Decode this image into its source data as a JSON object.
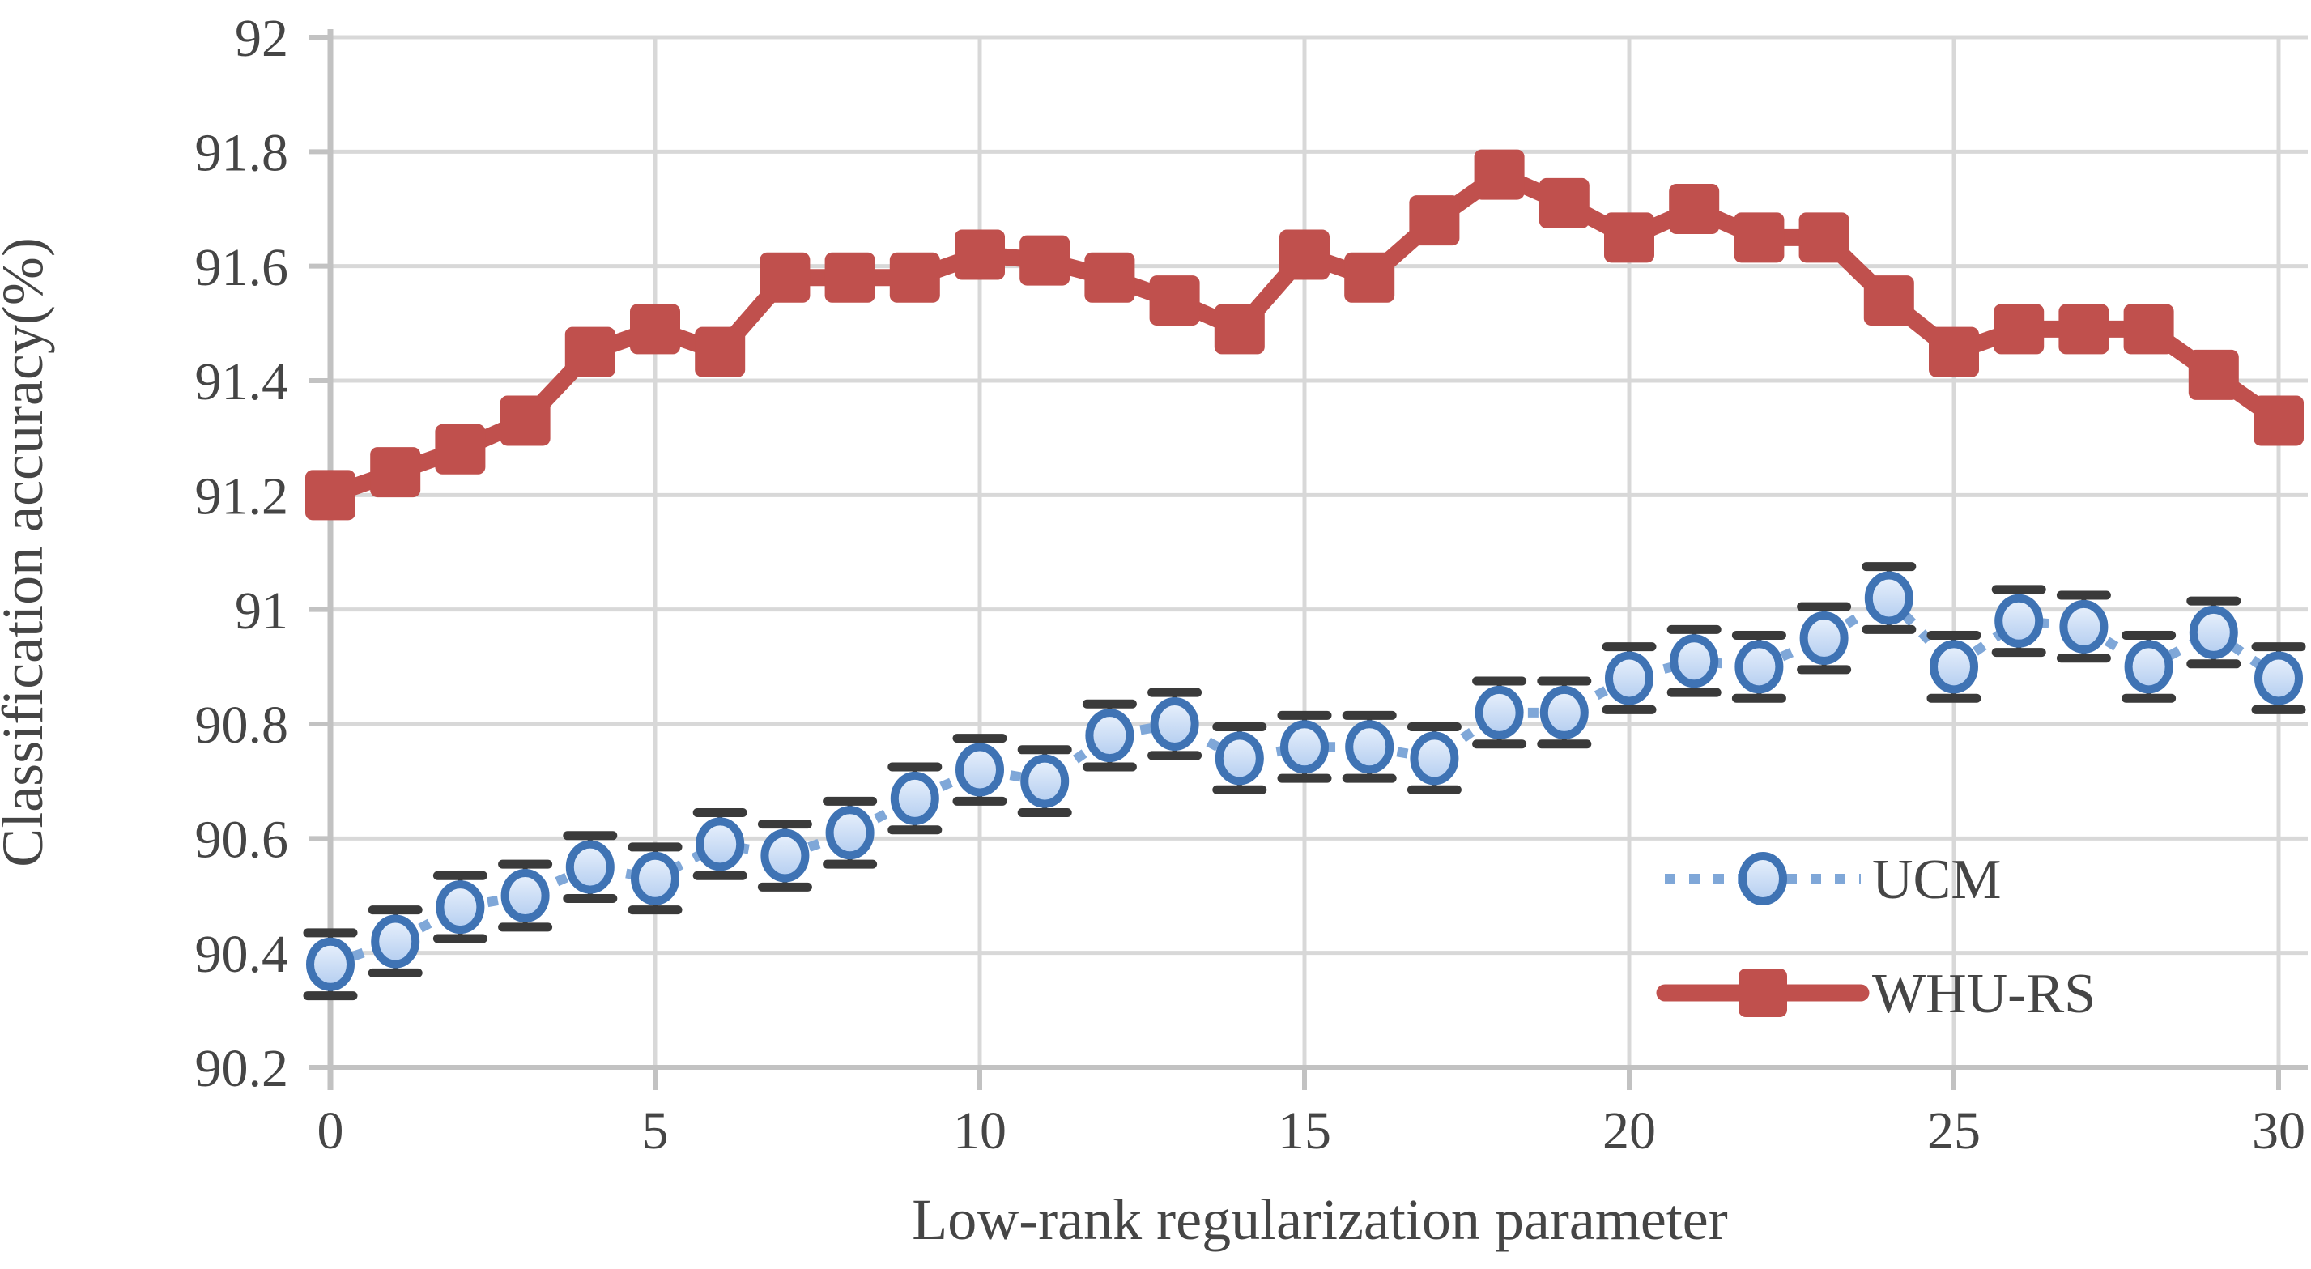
{
  "chart_data": {
    "type": "line",
    "title": "",
    "xlabel": "Low-rank regularization parameter",
    "ylabel": "Classification accuracy(%)",
    "xlim": [
      0,
      30
    ],
    "ylim": [
      90.2,
      92
    ],
    "grid": true,
    "x_ticks": [
      0,
      5,
      10,
      15,
      20,
      25,
      30
    ],
    "x_tick_labels": [
      "0",
      "5",
      "10",
      "15",
      "20",
      "25",
      "30"
    ],
    "y_ticks": [
      92,
      91.8,
      91.6,
      91.4,
      91.2,
      91,
      90.8,
      90.6,
      90.4,
      90.2
    ],
    "y_tick_labels": [
      "92",
      "91.8",
      "91.6",
      "91.4",
      "91.2",
      "91",
      "90.8",
      "90.6",
      "90.4",
      "90.2"
    ],
    "x": [
      0,
      1,
      2,
      3,
      4,
      5,
      6,
      7,
      8,
      9,
      10,
      11,
      12,
      13,
      14,
      15,
      16,
      17,
      18,
      19,
      20,
      21,
      22,
      23,
      24,
      25,
      26,
      27,
      28,
      29,
      30
    ],
    "series": [
      {
        "name": "UCM",
        "line_style": "dotted",
        "marker": "circle",
        "line_color": "#7fa7d8",
        "marker_edge_color": "#3f73b4",
        "marker_fill_light": "#e9f1fc",
        "marker_fill_dark": "#b3cdf0",
        "error_bar": 0.055,
        "error_cap_color": "#3a3a3a",
        "values": [
          90.38,
          90.42,
          90.48,
          90.5,
          90.55,
          90.53,
          90.59,
          90.57,
          90.61,
          90.67,
          90.72,
          90.7,
          90.78,
          90.8,
          90.74,
          90.76,
          90.76,
          90.74,
          90.82,
          90.82,
          90.88,
          90.91,
          90.9,
          90.95,
          91.02,
          90.9,
          90.98,
          90.97,
          90.9,
          90.96,
          90.88
        ]
      },
      {
        "name": "WHU-RS",
        "line_style": "solid",
        "marker": "square",
        "line_color": "#c0504d",
        "marker_edge_color": "#c0504d",
        "marker_fill": "#c0504d",
        "error_bar": 0,
        "values": [
          91.2,
          91.24,
          91.28,
          91.33,
          91.45,
          91.49,
          91.45,
          91.58,
          91.58,
          91.58,
          91.62,
          91.61,
          91.58,
          91.54,
          91.49,
          91.62,
          91.58,
          91.68,
          91.76,
          91.71,
          91.65,
          91.7,
          91.65,
          91.65,
          91.54,
          91.45,
          91.49,
          91.49,
          91.49,
          91.41,
          91.33
        ]
      }
    ],
    "legend": {
      "position": "inside-right",
      "items": [
        {
          "label": "UCM"
        },
        {
          "label": "WHU-RS"
        }
      ]
    },
    "colors": {
      "grid": "#d8d8d8",
      "axis": "#c2c2c2",
      "text": "#454545"
    }
  }
}
